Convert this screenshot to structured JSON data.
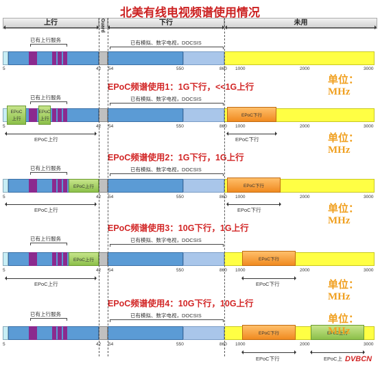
{
  "title": "北美有线电视频谱使用情况",
  "header": {
    "up": "上行",
    "guard": "Guard",
    "down": "下行",
    "unused": "未用"
  },
  "unit": "单位：MHz",
  "ticks": {
    "t5": "5",
    "t42": "42",
    "t54": "54",
    "t550": "550",
    "t860": "860",
    "t1000": "1000",
    "t2000": "2000",
    "t3000": "3000"
  },
  "labels": {
    "existing_up": "已有上行服务",
    "existing_down": "已有模拟、数字电视，DOCSIS"
  },
  "blocks": {
    "epoc_up": "EPoC上行",
    "epoc_up_short": "EPoC",
    "shang": "上行",
    "epoc_down": "EPoC下行"
  },
  "arrows": {
    "epoc_up": "EPoC上行",
    "epoc_down": "EPoC下行",
    "epoc_up_trunc": "EPoC上"
  },
  "scenarios": [
    {
      "title": "EPoC频谱使用1：1G下行，<<1G上行"
    },
    {
      "title": "EPoC频谱使用2：1G下行，1G上行"
    },
    {
      "title": "EPoC频谱使用3：10G下行，1G上行"
    },
    {
      "title": "EPoC频谱使用4：10G下行，10G上行"
    }
  ],
  "watermark": "DVBCN",
  "colors": {
    "up": "#5b9bd5",
    "purple": "#8b2a8e",
    "guard": "#c0c0c0",
    "down": "#5b9bd5",
    "down_light": "#a9c6ea",
    "unused": "#ffff44",
    "edge": "#c8eef5"
  }
}
